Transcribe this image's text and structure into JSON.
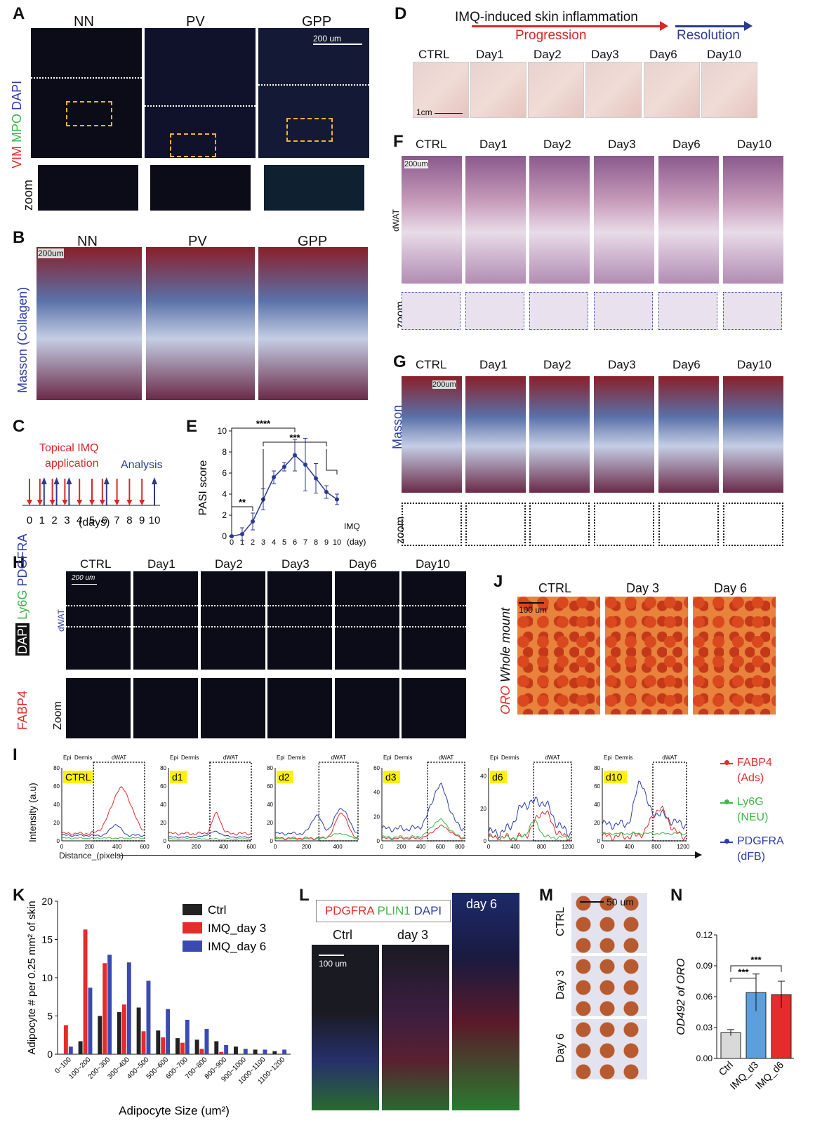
{
  "panels": {
    "A": {
      "letter": "A",
      "columns": [
        "NN",
        "PV",
        "GPP"
      ],
      "ylabel_parts": [
        {
          "text": "VIM",
          "color": "#e52b2b"
        },
        {
          "text": "MPO",
          "color": "#3fb54a"
        },
        {
          "text": "DAPI",
          "color": "#2c3ea8"
        }
      ],
      "scale": "200 um",
      "zoom_label": "zoom"
    },
    "B": {
      "letter": "B",
      "columns": [
        "NN",
        "PV",
        "GPP"
      ],
      "scale": "200um",
      "ylabel": "Masson (Collagen)"
    },
    "C": {
      "letter": "C",
      "title_line1": "Topical IMQ",
      "title_line2": "application",
      "analysis": "Analysis",
      "days": [
        "0",
        "1",
        "2",
        "3",
        "4",
        "5",
        "6",
        "7",
        "8",
        "9",
        "10"
      ],
      "xlabel": "(days)",
      "colors": {
        "imq": "#d62828",
        "analysis": "#2b3a8f"
      }
    },
    "D": {
      "letter": "D",
      "title": "IMQ-induced skin inflammation",
      "progression": "Progression",
      "resolution": "Resolution",
      "columns": [
        "CTRL",
        "Day1",
        "Day2",
        "Day3",
        "Day6",
        "Day10"
      ],
      "scale": "1cm"
    },
    "E": {
      "letter": "E",
      "ylabel": "PASI  score",
      "xlabel_unit": "IMQ",
      "xlabel_unit2": "(day)",
      "sig_labels": [
        "****",
        "***",
        "**"
      ]
    },
    "F": {
      "letter": "F",
      "columns": [
        "CTRL",
        "Day1",
        "Day2",
        "Day3",
        "Day6",
        "Day10"
      ],
      "scale": "200um",
      "layer": "dWAT",
      "zoom_label": "zoom"
    },
    "G": {
      "letter": "G",
      "columns": [
        "CTRL",
        "Day1",
        "Day2",
        "Day3",
        "Day6",
        "Day10"
      ],
      "scale": "200um",
      "ylabel": "Masson",
      "zoom_label": "zoom"
    },
    "H": {
      "letter": "H",
      "columns": [
        "CTRL",
        "Day1",
        "Day2",
        "Day3",
        "Day6",
        "Day10"
      ],
      "scale": "200 um",
      "layer": "dWAT",
      "ylabel_parts": [
        {
          "text": "DAPI",
          "color": "#ffffff"
        },
        {
          "text": "Ly6G",
          "color": "#3fb54a"
        },
        {
          "text": "PDGFRA",
          "color": "#2c3ea8"
        },
        {
          "text": "FABP4",
          "color": "#e52b2b"
        }
      ],
      "zoom_label": "Zoom"
    },
    "I": {
      "letter": "I",
      "ylabel": "Intensity (a.u)",
      "xlabel": "Distance_(pixels)",
      "region_labels": [
        "Epi",
        "Dermis",
        "dWAT"
      ],
      "legend": [
        {
          "name": "FABP4",
          "sub": "(Ads)",
          "color": "#e52b2b"
        },
        {
          "name": "Ly6G",
          "sub": "(NEU)",
          "color": "#3fb54a"
        },
        {
          "name": "PDGFRA",
          "sub": "(dFB)",
          "color": "#2c3ea8"
        }
      ],
      "tags": [
        "CTRL",
        "d1",
        "d2",
        "d3",
        "d6",
        "d10"
      ]
    },
    "J": {
      "letter": "J",
      "columns": [
        "CTRL",
        "Day 3",
        "Day 6"
      ],
      "scale": "100 um",
      "ylabel_a": "ORO",
      "ylabel_b": "Whole mount"
    },
    "K": {
      "letter": "K",
      "ylabel": "Adipocyte # per 0.25 mm² of skin",
      "xlabel": "Adipocyte Size (um²)"
    },
    "L": {
      "letter": "L",
      "legend_parts": [
        {
          "text": "PDGFRA",
          "color": "#e52b2b"
        },
        {
          "text": "PLIN1",
          "color": "#3fb54a"
        },
        {
          "text": "DAPI",
          "color": "#2c3ea8"
        }
      ],
      "columns": [
        "Ctrl",
        "day 3",
        "day 6"
      ],
      "scale": "100 um"
    },
    "M": {
      "letter": "M",
      "rows": [
        "CTRL",
        "Day 3",
        "Day 6"
      ],
      "scale": "50 um"
    },
    "N": {
      "letter": "N",
      "ylabel": "OD492 of ORO",
      "sig": [
        "***",
        "***"
      ]
    }
  },
  "chart_data": [
    {
      "id": "E",
      "type": "line",
      "x": [
        0,
        1,
        2,
        3,
        4,
        5,
        6,
        7,
        8,
        9,
        10
      ],
      "y": [
        0,
        0.2,
        1.4,
        3.5,
        5.6,
        6.6,
        7.7,
        6.8,
        5.5,
        4.2,
        3.5
      ],
      "err": [
        0,
        0.6,
        0.8,
        1.0,
        0.6,
        0.4,
        1.5,
        2.5,
        1.4,
        0.6,
        0.5
      ],
      "ylim": [
        0,
        10
      ],
      "yticks": [
        0,
        2,
        4,
        6,
        8,
        10
      ],
      "color": "#2b3a8f"
    },
    {
      "id": "I",
      "type": "line",
      "subplots": [
        {
          "tag": "CTRL",
          "xlim": [
            0,
            600
          ],
          "xticks": [
            0,
            200,
            400,
            600
          ],
          "ylim": [
            0,
            80
          ],
          "yticks": [
            0,
            20,
            40,
            60,
            80
          ],
          "dwat_start": 230
        },
        {
          "tag": "d1",
          "xlim": [
            0,
            600
          ],
          "xticks": [
            0,
            200,
            400,
            600
          ],
          "ylim": [
            0,
            80
          ],
          "yticks": [
            0,
            20,
            40,
            60,
            80
          ],
          "dwat_start": 300
        },
        {
          "tag": "d2",
          "xlim": [
            0,
            530
          ],
          "xticks": [
            0,
            200,
            400
          ],
          "ylim": [
            0,
            80
          ],
          "yticks": [
            0,
            20,
            40,
            60,
            80
          ],
          "dwat_start": 280
        },
        {
          "tag": "d3",
          "xlim": [
            0,
            850
          ],
          "xticks": [
            0,
            200,
            400,
            600,
            800
          ],
          "ylim": [
            0,
            60
          ],
          "yticks": [
            0,
            20,
            40,
            60
          ],
          "dwat_start": 470
        },
        {
          "tag": "d6",
          "xlim": [
            0,
            1250
          ],
          "xticks": [
            0,
            400,
            800,
            1200
          ],
          "ylim": [
            0,
            45
          ],
          "yticks": [
            0,
            20,
            40
          ],
          "dwat_start": 680
        },
        {
          "tag": "d10",
          "xlim": [
            0,
            1250
          ],
          "xticks": [
            0,
            400,
            800,
            1200
          ],
          "ylim": [
            0,
            80
          ],
          "yticks": [
            0,
            20,
            40,
            60,
            80
          ],
          "dwat_start": 750
        }
      ]
    },
    {
      "id": "K",
      "type": "bar",
      "categories": [
        "0~100",
        "100~200",
        "200~300",
        "300~400",
        "400~500",
        "500~600",
        "600~700",
        "700~800",
        "800~900",
        "900~1000",
        "1000~1100",
        "1100~1200"
      ],
      "series": [
        {
          "name": "Ctrl",
          "color": "#222222",
          "values": [
            0,
            1.7,
            5,
            5.5,
            6.1,
            3.1,
            2.1,
            1.9,
            1.7,
            1.0,
            0.6,
            0.4
          ]
        },
        {
          "name": "IMQ_day 3",
          "color": "#e52b2b",
          "values": [
            3.8,
            16.3,
            11.9,
            6.5,
            3.0,
            2.2,
            1.5,
            0.7,
            0.3,
            0,
            0,
            0
          ]
        },
        {
          "name": "IMQ_day 6",
          "color": "#3a4ab0",
          "values": [
            1.0,
            8.7,
            13.0,
            12.0,
            9.6,
            5.9,
            4.5,
            3.3,
            1.2,
            0.7,
            0.6,
            0.6
          ]
        }
      ],
      "ylim": [
        0,
        20
      ],
      "yticks": [
        0,
        5,
        10,
        15,
        20
      ]
    },
    {
      "id": "N",
      "type": "bar",
      "categories": [
        "Ctrl",
        "IMQ_d3",
        "IMQ_d6"
      ],
      "values": [
        0.025,
        0.064,
        0.062
      ],
      "err": [
        0.003,
        0.018,
        0.013
      ],
      "colors": [
        "#d9d9d9",
        "#5d9fdd",
        "#e52b2b"
      ],
      "ylim": [
        0,
        0.12
      ],
      "yticks": [
        0.0,
        0.03,
        0.06,
        0.09,
        0.12
      ]
    }
  ]
}
